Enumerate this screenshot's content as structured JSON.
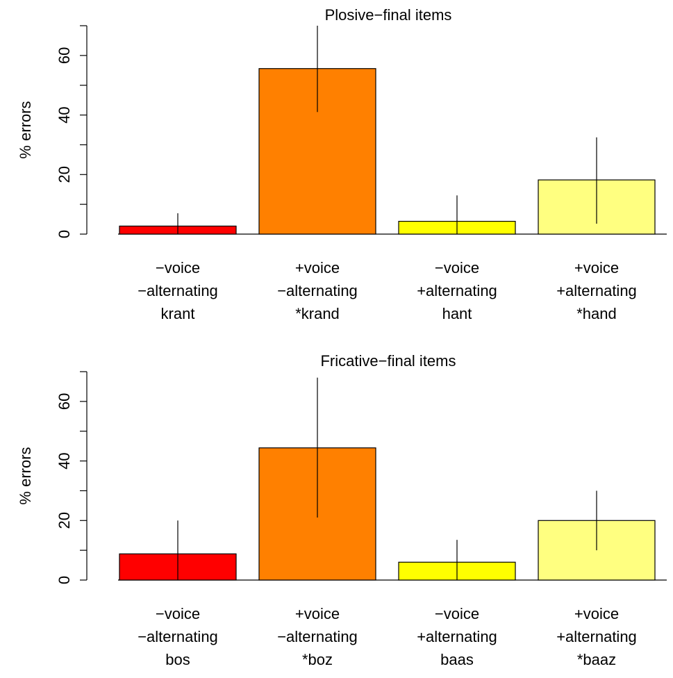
{
  "colors": {
    "bar_voiceless_nonalternating": "#FF0000",
    "bar_voiced_nonalternating": "#FF8000",
    "bar_voiceless_alternating": "#FFFF00",
    "bar_voiced_alternating": "#FFFF80",
    "stroke": "#000000"
  },
  "chart_data": [
    {
      "type": "bar",
      "title": "Plosive−final items",
      "xlabel": "",
      "ylabel": "% errors",
      "ylim": [
        0,
        70
      ],
      "yticks": [
        0,
        20,
        40,
        60
      ],
      "grid": false,
      "legend": "none",
      "categories": [
        [
          "−voice",
          "−alternating",
          "krant"
        ],
        [
          "+voice",
          "−alternating",
          "*krand"
        ],
        [
          "−voice",
          "+alternating",
          "hant"
        ],
        [
          "+voice",
          "+alternating",
          "*hand"
        ]
      ],
      "values": [
        2.7,
        55.6,
        4.3,
        18.2
      ],
      "error_low": [
        0,
        41,
        0,
        3.5
      ],
      "error_high": [
        7,
        70,
        13,
        32.5
      ]
    },
    {
      "type": "bar",
      "title": "Fricative−final items",
      "xlabel": "",
      "ylabel": "% errors",
      "ylim": [
        0,
        70
      ],
      "yticks": [
        0,
        20,
        40,
        60
      ],
      "grid": false,
      "legend": "none",
      "categories": [
        [
          "−voice",
          "−alternating",
          "bos"
        ],
        [
          "+voice",
          "−alternating",
          "*boz"
        ],
        [
          "−voice",
          "+alternating",
          "baas"
        ],
        [
          "+voice",
          "+alternating",
          "*baaz"
        ]
      ],
      "values": [
        8.8,
        44.4,
        6.0,
        20.0
      ],
      "error_low": [
        0,
        21,
        0,
        10
      ],
      "error_high": [
        20,
        68,
        13.5,
        30
      ]
    }
  ]
}
